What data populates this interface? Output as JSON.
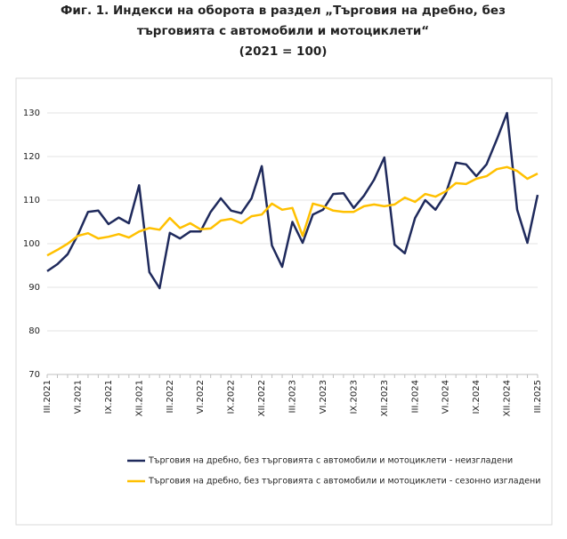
{
  "chart_data": {
    "type": "line",
    "title": [
      "Фиг. 1. Индекси на оборота в раздел „Търговия на дребно, без",
      "търговията с автомобили и мотоциклети“",
      "(2021 = 100)"
    ],
    "categories": [
      "III.2021",
      null,
      null,
      "VI.2021",
      null,
      null,
      "IX.2021",
      null,
      null,
      "XII.2021",
      null,
      null,
      "III.2022",
      null,
      null,
      "VI.2022",
      null,
      null,
      "IX.2022",
      null,
      null,
      "XII.2022",
      null,
      null,
      "III.2023",
      null,
      null,
      "VI.2023",
      null,
      null,
      "IX.2023",
      null,
      null,
      "XII.2023",
      null,
      null,
      "III.2024",
      null,
      null,
      "VI.2024",
      null,
      null,
      "IX.2024",
      null,
      null,
      "XII.2024",
      null,
      null,
      "III.2025"
    ],
    "series": [
      {
        "name": "Търговия на дребно, без търговията с автомобили и мотоциклети - неизгладени",
        "color": "#1f2a5c",
        "values": [
          93.7,
          95.3,
          97.6,
          102,
          107.3,
          107.6,
          104.5,
          106,
          104.7,
          113.4,
          93.5,
          89.8,
          102.5,
          101.2,
          102.8,
          102.8,
          107.3,
          110.4,
          107.6,
          107,
          110.4,
          117.8,
          99.6,
          94.7,
          105,
          100.2,
          106.7,
          107.8,
          111.4,
          111.6,
          108.2,
          111,
          114.7,
          119.8,
          99.8,
          97.8,
          105.9,
          110,
          107.8,
          111.4,
          118.6,
          118.2,
          115.5,
          118.2,
          123.9,
          130,
          107.8,
          100.2,
          111.2
        ]
      },
      {
        "name": "Търговия на дребно, без търговията с автомобили и мотоциклети - сезонно изгладени",
        "color": "#ffc000",
        "values": [
          97.3,
          98.6,
          100,
          101.8,
          102.4,
          101.2,
          101.6,
          102.2,
          101.4,
          102.8,
          103.6,
          103.2,
          105.9,
          103.6,
          104.7,
          103.3,
          103.5,
          105.3,
          105.7,
          104.7,
          106.3,
          106.7,
          109.2,
          107.8,
          108.2,
          101.8,
          109.2,
          108.6,
          107.6,
          107.3,
          107.3,
          108.6,
          109,
          108.6,
          109,
          110.6,
          109.6,
          111.4,
          110.8,
          112,
          113.9,
          113.7,
          114.9,
          115.5,
          117.1,
          117.6,
          116.7,
          114.9,
          116.1
        ]
      }
    ],
    "ylim": [
      70,
      130
    ],
    "yticks": [
      70,
      80,
      90,
      100,
      110,
      120,
      130
    ],
    "grid": true,
    "legend": "bottom"
  }
}
